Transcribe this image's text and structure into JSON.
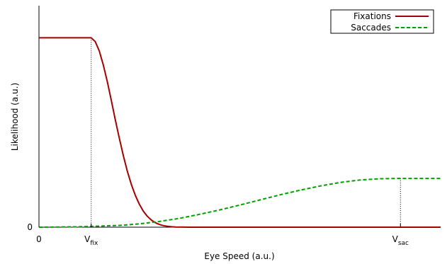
{
  "chart_data": {
    "type": "line",
    "title": "",
    "xlabel": "Eye Speed (a.u.)",
    "ylabel": "Likelihood (a.u.)",
    "xlim": [
      0,
      10
    ],
    "ylim": [
      0,
      1
    ],
    "x_ticks": [
      {
        "value": 0,
        "label": "0"
      },
      {
        "value": 1.3,
        "label_main": "V",
        "label_sub": "fix"
      },
      {
        "value": 9,
        "label_main": "V",
        "label_sub": "sac"
      }
    ],
    "y_ticks": [
      {
        "value": 0,
        "label": "0"
      }
    ],
    "markers": [
      {
        "x": 1.3,
        "series": "Fixations"
      },
      {
        "x": 9,
        "series": "Saccades"
      }
    ],
    "legend_position": "top-right",
    "series": [
      {
        "name": "Fixations",
        "color": "#a50000",
        "style": "solid",
        "x": [
          0,
          1.3,
          1.4,
          1.5,
          1.6,
          1.7,
          1.8,
          1.9,
          2.0,
          2.1,
          2.2,
          2.3,
          2.4,
          2.5,
          2.6,
          2.7,
          2.8,
          2.9,
          3.0,
          3.1,
          3.2,
          3.3,
          3.4,
          3.6,
          3.8,
          4.0,
          5.0,
          7.0,
          9.0,
          10.0
        ],
        "values": [
          0.855,
          0.855,
          0.838,
          0.796,
          0.734,
          0.658,
          0.573,
          0.486,
          0.402,
          0.323,
          0.253,
          0.193,
          0.143,
          0.103,
          0.072,
          0.049,
          0.032,
          0.02,
          0.012,
          0.007,
          0.004,
          0.002,
          0.001,
          0.0003,
          0.0001,
          0.0,
          0.0,
          0.0,
          0.0,
          0.0
        ]
      },
      {
        "name": "Saccades",
        "color": "#00a000",
        "style": "dashed",
        "x": [
          0,
          1.0,
          2.0,
          2.5,
          3.0,
          3.5,
          4.0,
          4.5,
          5.0,
          5.5,
          6.0,
          6.5,
          7.0,
          7.5,
          8.0,
          8.5,
          9.0,
          10.0
        ],
        "values": [
          0.0,
          0.002,
          0.008,
          0.015,
          0.026,
          0.04,
          0.058,
          0.078,
          0.1,
          0.123,
          0.146,
          0.167,
          0.186,
          0.202,
          0.213,
          0.219,
          0.22,
          0.22
        ]
      }
    ]
  }
}
